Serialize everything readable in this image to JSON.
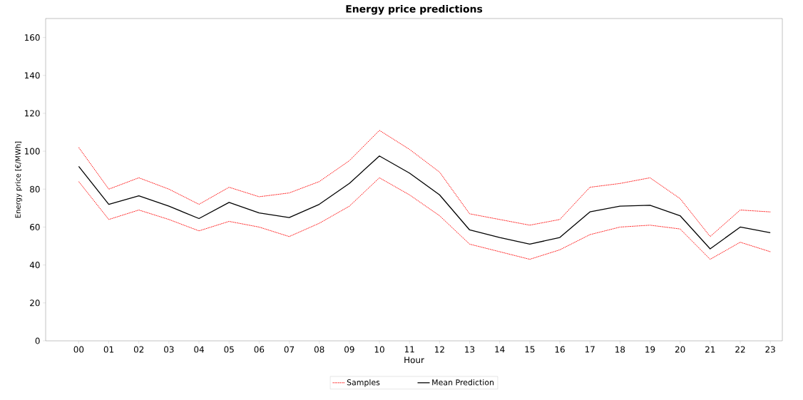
{
  "chart_data": {
    "type": "line",
    "title": "Energy price predictions",
    "xlabel": "Hour",
    "ylabel": "Energy price [€/MWh]",
    "categories": [
      "00",
      "01",
      "02",
      "03",
      "04",
      "05",
      "06",
      "07",
      "08",
      "09",
      "10",
      "11",
      "12",
      "13",
      "14",
      "15",
      "16",
      "17",
      "18",
      "19",
      "20",
      "21",
      "22",
      "23"
    ],
    "series": [
      {
        "name": "Samples",
        "color": "#ff0000",
        "line_style": "dotted",
        "values": [
          102,
          80,
          86,
          80,
          72,
          81,
          76,
          78,
          84,
          95,
          111,
          101,
          89,
          67,
          64,
          61,
          64,
          81,
          83,
          86,
          75,
          55,
          69,
          68
        ]
      },
      {
        "color": "#ff0000",
        "line_style": "dotted",
        "values": [
          84,
          64,
          69,
          64,
          58,
          63,
          60,
          55,
          62,
          71,
          86,
          77,
          66,
          51,
          47,
          43,
          48,
          56,
          60,
          61,
          59,
          43,
          52,
          47
        ]
      },
      {
        "name": "Mean Prediction",
        "color": "#000000",
        "line_style": "solid",
        "values": [
          92,
          72,
          76.5,
          71,
          64.5,
          73,
          67.5,
          65,
          72,
          83,
          97.5,
          88.5,
          77,
          58.5,
          54.5,
          51,
          54.5,
          68,
          71,
          71.5,
          66,
          48.5,
          60,
          57
        ]
      }
    ],
    "ylim": [
      0,
      170
    ],
    "yticks": [
      0,
      20,
      40,
      60,
      80,
      100,
      120,
      140,
      160
    ],
    "legend": "bottom",
    "grid": false
  }
}
